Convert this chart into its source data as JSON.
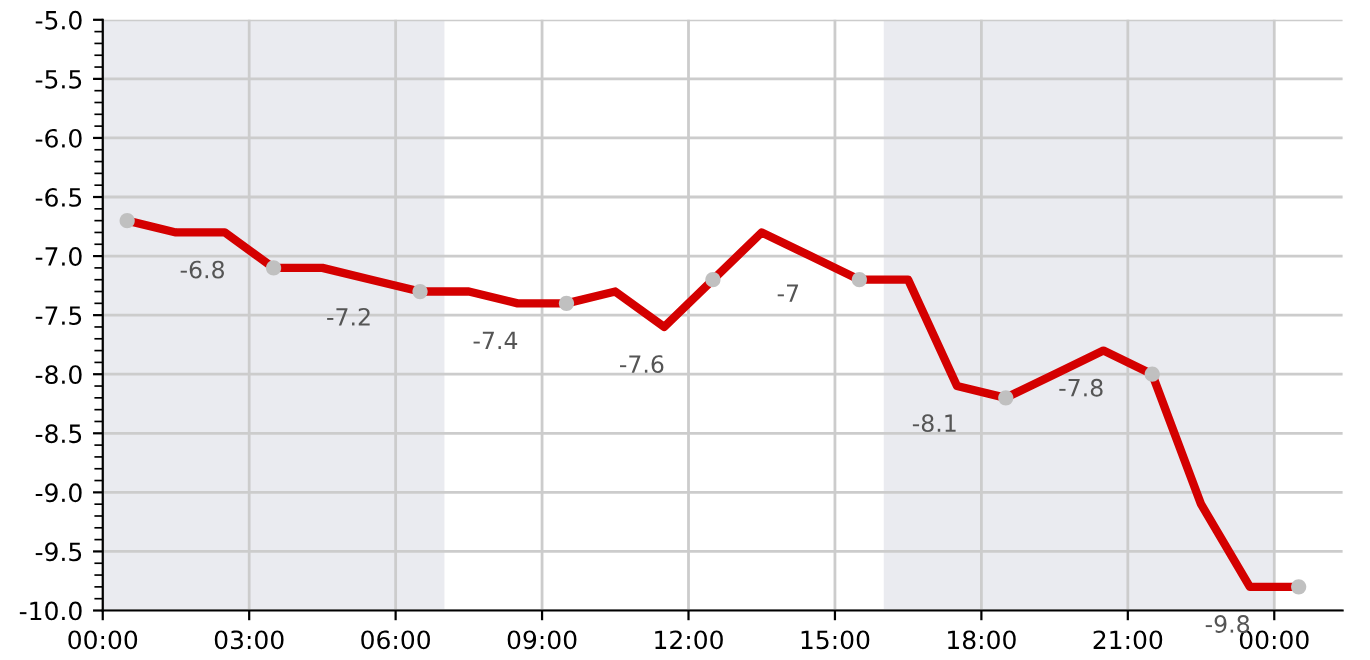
{
  "chart_data": {
    "type": "line",
    "x": [
      0.5,
      1.5,
      2.5,
      3.5,
      4.5,
      5.5,
      6.5,
      7.5,
      8.5,
      9.5,
      10.5,
      11.5,
      12.5,
      13.5,
      14.5,
      15.5,
      16.5,
      17.5,
      18.5,
      19.5,
      20.5,
      21.5,
      22.5,
      23.5,
      24.5
    ],
    "series": [
      {
        "color": "#d40000",
        "values": [
          -6.7,
          -6.8,
          -6.8,
          -7.1,
          -7.1,
          -7.2,
          -7.3,
          -7.3,
          -7.4,
          -7.4,
          -7.3,
          -7.6,
          -7.2,
          -6.8,
          -7.0,
          -7.2,
          -7.2,
          -8.1,
          -8.2,
          -8.0,
          -7.8,
          -8.0,
          -9.1,
          -9.8,
          -9.8
        ],
        "value_labels": [
          null,
          null,
          "-6.8",
          null,
          null,
          "-7.2",
          null,
          null,
          "-7.4",
          null,
          null,
          "-7.6",
          null,
          null,
          "-7",
          null,
          null,
          "-8.1",
          null,
          null,
          "-7.8",
          null,
          null,
          "-9.8",
          null
        ]
      },
      {
        "type": "scatter",
        "color": "#c0c0c0",
        "x": [
          0.5,
          3.5,
          6.5,
          9.5,
          12.5,
          15.5,
          18.5,
          21.5,
          24.5
        ],
        "values": [
          -6.7,
          -7.1,
          -7.3,
          -7.4,
          -7.2,
          -7.2,
          -8.2,
          -8.0,
          -9.8
        ]
      }
    ],
    "xlim": [
      0,
      25.4
    ],
    "xticks": [
      {
        "value": 0,
        "label": "00:00"
      },
      {
        "value": 3,
        "label": "03:00"
      },
      {
        "value": 6,
        "label": "06:00"
      },
      {
        "value": 9,
        "label": "09:00"
      },
      {
        "value": 12,
        "label": "12:00"
      },
      {
        "value": 15,
        "label": "15:00"
      },
      {
        "value": 18,
        "label": "18:00"
      },
      {
        "value": 21,
        "label": "21:00"
      },
      {
        "value": 24,
        "label": "00:00"
      }
    ],
    "ylim": [
      -10,
      -5
    ],
    "yticks": [
      {
        "value": -5,
        "label": "-5.0"
      },
      {
        "value": -5.5,
        "label": "-5.5"
      },
      {
        "value": -6,
        "label": "-6.0"
      },
      {
        "value": -6.5,
        "label": "-6.5"
      },
      {
        "value": -7,
        "label": "-7.0"
      },
      {
        "value": -7.5,
        "label": "-7.5"
      },
      {
        "value": -8,
        "label": "-8.0"
      },
      {
        "value": -8.5,
        "label": "-8.5"
      },
      {
        "value": -9,
        "label": "-9.0"
      },
      {
        "value": -9.5,
        "label": "-9.5"
      },
      {
        "value": -10,
        "label": "-10.0"
      }
    ],
    "bands": [
      {
        "axis": "x",
        "from": 0,
        "to": 7,
        "color": "#eaebf0"
      },
      {
        "axis": "x",
        "from": 16,
        "to": 24,
        "color": "#eaebf0"
      }
    ],
    "grid": true,
    "legend": false
  }
}
